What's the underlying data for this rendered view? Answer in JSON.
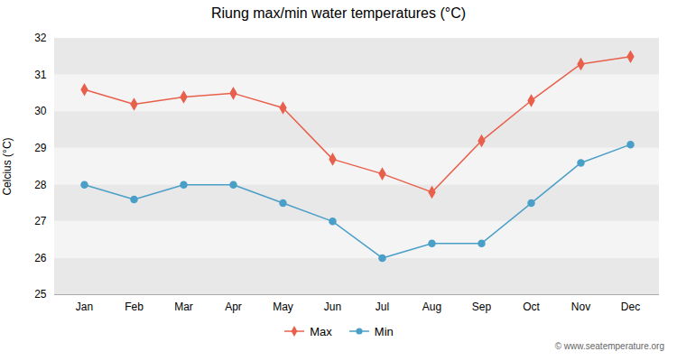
{
  "chart_data": {
    "type": "line",
    "title": "Riung max/min water temperatures (°C)",
    "ylabel": "Celcius (°C)",
    "categories": [
      "Jan",
      "Feb",
      "Mar",
      "Apr",
      "May",
      "Jun",
      "Jul",
      "Aug",
      "Sep",
      "Oct",
      "Nov",
      "Dec"
    ],
    "series": [
      {
        "name": "Max",
        "color": "#e8604c",
        "marker": "diamond",
        "values": [
          30.6,
          30.2,
          30.4,
          30.5,
          30.1,
          28.7,
          28.3,
          27.8,
          29.2,
          30.3,
          31.3,
          31.5
        ]
      },
      {
        "name": "Min",
        "color": "#4a9fc8",
        "marker": "circle",
        "values": [
          28.0,
          27.6,
          28.0,
          28.0,
          27.5,
          27.0,
          26.0,
          26.4,
          26.4,
          27.5,
          28.6,
          29.1
        ]
      }
    ],
    "ylim": [
      25,
      32
    ],
    "yticks": [
      25,
      26,
      27,
      28,
      29,
      30,
      31,
      32
    ],
    "grid": true,
    "legend": "bottom",
    "annotations": [
      "© www.seatemperature.org"
    ]
  }
}
